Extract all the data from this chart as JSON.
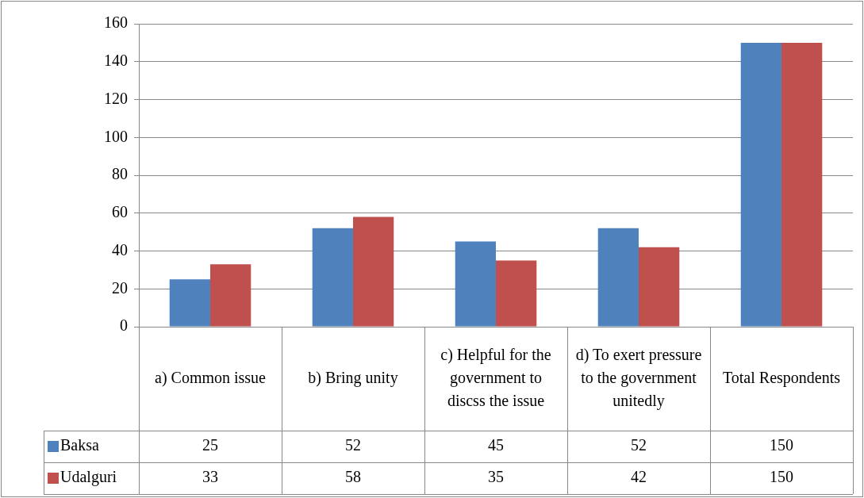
{
  "chart_data": {
    "type": "bar",
    "categories": [
      "a) Common issue",
      "b) Bring unity",
      "c) Helpful for the government to discss the issue",
      "d) To exert pressure to the government unitedly",
      "Total Respondents"
    ],
    "series": [
      {
        "name": "Baksa",
        "color": "#4f81bd",
        "values": [
          25,
          52,
          45,
          52,
          150
        ]
      },
      {
        "name": "Udalguri",
        "color": "#c0504d",
        "values": [
          33,
          58,
          35,
          42,
          150
        ]
      }
    ],
    "ylim": [
      0,
      160
    ],
    "yticks": [
      0,
      20,
      40,
      60,
      80,
      100,
      120,
      140,
      160
    ],
    "grid": "y",
    "legend": "bottom",
    "data_labels": true
  }
}
